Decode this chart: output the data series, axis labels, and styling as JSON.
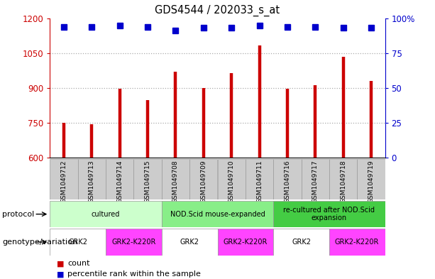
{
  "title": "GDS4544 / 202033_s_at",
  "samples": [
    "GSM1049712",
    "GSM1049713",
    "GSM1049714",
    "GSM1049715",
    "GSM1049708",
    "GSM1049709",
    "GSM1049710",
    "GSM1049711",
    "GSM1049716",
    "GSM1049717",
    "GSM1049718",
    "GSM1049719"
  ],
  "counts": [
    750,
    743,
    895,
    848,
    970,
    900,
    965,
    1082,
    896,
    912,
    1035,
    930
  ],
  "percentile_yvals": [
    1163,
    1163,
    1168,
    1163,
    1148,
    1158,
    1158,
    1168,
    1163,
    1163,
    1158,
    1158
  ],
  "ylim_left": [
    600,
    1200
  ],
  "ylim_right": [
    0,
    100
  ],
  "yticks_left": [
    600,
    750,
    900,
    1050,
    1200
  ],
  "yticks_right": [
    0,
    25,
    50,
    75,
    100
  ],
  "bar_color": "#cc0000",
  "dot_color": "#0000cc",
  "protocol_groups": [
    {
      "label": "cultured",
      "start": 0,
      "end": 3,
      "color": "#ccffcc"
    },
    {
      "label": "NOD.Scid mouse-expanded",
      "start": 4,
      "end": 7,
      "color": "#88ee88"
    },
    {
      "label": "re-cultured after NOD.Scid\nexpansion",
      "start": 8,
      "end": 11,
      "color": "#44cc44"
    }
  ],
  "genotype_groups": [
    {
      "label": "GRK2",
      "start": 0,
      "end": 1,
      "color": "#ffffff"
    },
    {
      "label": "GRK2-K220R",
      "start": 2,
      "end": 3,
      "color": "#ff44ff"
    },
    {
      "label": "GRK2",
      "start": 4,
      "end": 5,
      "color": "#ffffff"
    },
    {
      "label": "GRK2-K220R",
      "start": 6,
      "end": 7,
      "color": "#ff44ff"
    },
    {
      "label": "GRK2",
      "start": 8,
      "end": 9,
      "color": "#ffffff"
    },
    {
      "label": "GRK2-K220R",
      "start": 10,
      "end": 11,
      "color": "#ff44ff"
    }
  ],
  "row_labels": [
    "protocol",
    "genotype/variation"
  ],
  "legend_items": [
    {
      "color": "#cc0000",
      "label": "count"
    },
    {
      "color": "#0000cc",
      "label": "percentile rank within the sample"
    }
  ],
  "grid_color": "#888888",
  "background_color": "#ffffff",
  "left_color": "#cc0000",
  "right_color": "#0000cc"
}
